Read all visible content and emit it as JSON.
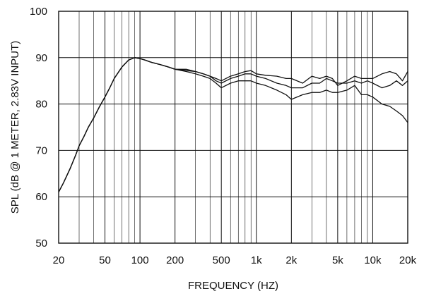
{
  "chart_data": {
    "type": "line",
    "title": "",
    "xlabel": "FREQUENCY  (HZ)",
    "ylabel": "SPL (dB @ 1 METER, 2.83V INPUT)",
    "x_scale": "log",
    "xlim": [
      20,
      20000
    ],
    "ylim": [
      50,
      100
    ],
    "grid": true,
    "x_ticks": [
      20,
      50,
      100,
      200,
      500,
      1000,
      2000,
      5000,
      10000,
      20000
    ],
    "x_tick_labels": [
      "20",
      "50",
      "100",
      "200",
      "500",
      "1k",
      "2k",
      "5k",
      "10k",
      "20k"
    ],
    "y_ticks": [
      50,
      60,
      70,
      80,
      90,
      100
    ],
    "y_tick_labels": [
      "50",
      "60",
      "70",
      "80",
      "90",
      "100"
    ],
    "line_color": "#111111",
    "series": [
      {
        "x": [
          20,
          22,
          25,
          28,
          30,
          33,
          36,
          40,
          45,
          50,
          55,
          60,
          70,
          80,
          90,
          100,
          110,
          125,
          150,
          175,
          200,
          250,
          300,
          350,
          400,
          450,
          500,
          600,
          700,
          800,
          900,
          1000,
          1200,
          1500,
          1800,
          2000,
          2500,
          3000,
          3500,
          4000,
          4500,
          5000,
          6000,
          7000,
          8000,
          9000,
          10000,
          12000,
          14000,
          16000,
          18000,
          20000
        ],
        "y": [
          61,
          63,
          66,
          69,
          71,
          73,
          75,
          77,
          79.5,
          81.5,
          83.5,
          85.5,
          88,
          89.5,
          90,
          89.8,
          89.5,
          89,
          88.5,
          88,
          87.5,
          87.5,
          87,
          86.5,
          86,
          85.5,
          85,
          86,
          86.5,
          87,
          87.2,
          86.5,
          86.2,
          86,
          85.5,
          85.5,
          84.5,
          86,
          85.5,
          86,
          85.5,
          84,
          85,
          86,
          85.5,
          85.5,
          85.5,
          86.5,
          87,
          86.5,
          85,
          87
        ]
      },
      {
        "x": [
          20,
          22,
          25,
          28,
          30,
          33,
          36,
          40,
          45,
          50,
          55,
          60,
          70,
          80,
          90,
          100,
          110,
          125,
          150,
          175,
          200,
          250,
          300,
          350,
          400,
          450,
          500,
          600,
          700,
          800,
          900,
          1000,
          1200,
          1500,
          1800,
          2000,
          2500,
          3000,
          3500,
          4000,
          4500,
          5000,
          6000,
          7000,
          8000,
          9000,
          10000,
          12000,
          14000,
          16000,
          18000,
          20000
        ],
        "y": [
          61,
          63,
          66,
          69,
          71,
          73,
          75,
          77,
          79.5,
          81.5,
          83.5,
          85.5,
          88,
          89.5,
          90,
          89.8,
          89.5,
          89,
          88.5,
          88,
          87.5,
          87.2,
          87,
          86.5,
          86,
          85,
          84.5,
          85.5,
          86,
          86.5,
          86.5,
          86,
          85.5,
          84.5,
          84,
          83.5,
          83.5,
          84.5,
          84.5,
          85.5,
          85,
          84.5,
          84.5,
          85,
          84.5,
          85,
          84.5,
          83.5,
          84,
          85,
          84,
          85
        ]
      },
      {
        "x": [
          20,
          22,
          25,
          28,
          30,
          33,
          36,
          40,
          45,
          50,
          55,
          60,
          70,
          80,
          90,
          100,
          110,
          125,
          150,
          175,
          200,
          250,
          300,
          350,
          400,
          450,
          500,
          600,
          700,
          800,
          900,
          1000,
          1200,
          1500,
          1800,
          2000,
          2500,
          3000,
          3500,
          4000,
          4500,
          5000,
          6000,
          7000,
          8000,
          9000,
          10000,
          12000,
          14000,
          16000,
          18000,
          20000
        ],
        "y": [
          61,
          63,
          66,
          69,
          71,
          73,
          75,
          77,
          79.5,
          81.5,
          83.5,
          85.5,
          88,
          89.5,
          90,
          89.8,
          89.5,
          89,
          88.5,
          88,
          87.5,
          87,
          86.5,
          86,
          85.5,
          84.5,
          83.5,
          84.5,
          85,
          85,
          85,
          84.5,
          84,
          83,
          82,
          81,
          82,
          82.5,
          82.5,
          83,
          82.5,
          82.5,
          83,
          84,
          82,
          82,
          81.5,
          80,
          79.5,
          78.5,
          77.5,
          76
        ]
      }
    ]
  }
}
